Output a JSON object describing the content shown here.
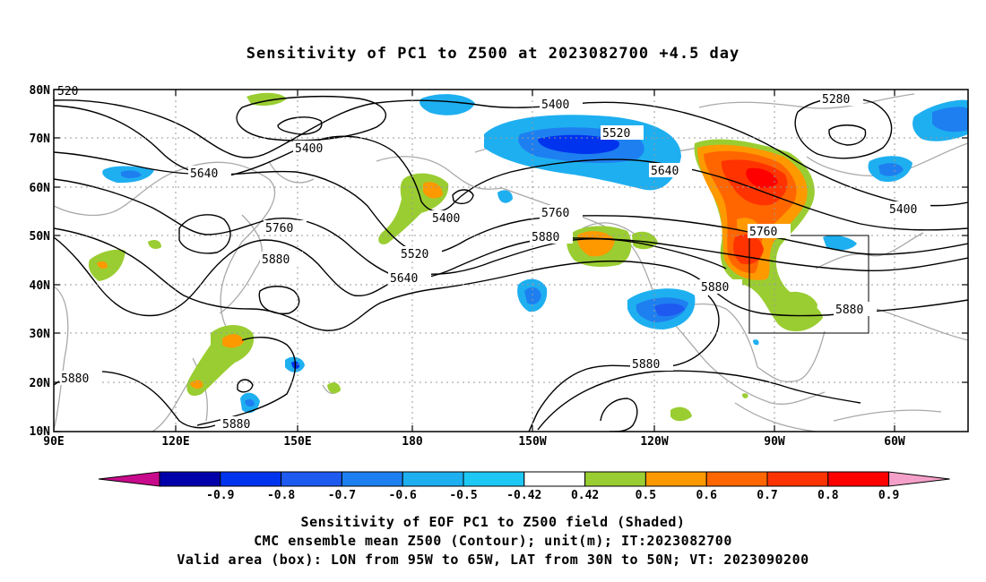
{
  "title": "Sensitivity of PC1 to Z500 at 2023082700 +4.5 day",
  "map": {
    "lat_labels": [
      "80N",
      "70N",
      "60N",
      "50N",
      "40N",
      "30N",
      "20N",
      "10N"
    ],
    "lon_labels": [
      "90E",
      "120E",
      "150E",
      "180",
      "150W",
      "120W",
      "90W",
      "60W"
    ],
    "contour_labels": [
      "5400",
      "5400",
      "5400",
      "5400",
      "5280",
      "5520",
      "5520",
      "5640",
      "5640",
      "5640",
      "5760",
      "5760",
      "5760",
      "5880",
      "5880",
      "5880",
      "5880",
      "5880",
      "5880",
      "5880"
    ],
    "partial_label": "520",
    "valid_box": {
      "lon_min": "95W",
      "lon_max": "65W",
      "lat_min": "30N",
      "lat_max": "50N"
    }
  },
  "colorbar": {
    "labels": [
      "-0.9",
      "-0.8",
      "-0.7",
      "-0.6",
      "-0.5",
      "-0.42",
      "0.42",
      "0.5",
      "0.6",
      "0.7",
      "0.8",
      "0.9"
    ],
    "colors": [
      "#0000aa",
      "#0033ee",
      "#1e5af0",
      "#1e7ff0",
      "#1eaff0",
      "#1ec8f5",
      "#ffffff",
      "#9acd32",
      "#ff9900",
      "#ff6600",
      "#ff3300",
      "#ff0000"
    ],
    "low_extend_color": "#c80a8c",
    "high_extend_color": "#f5a0c8"
  },
  "captions": {
    "line1": "Sensitivity of EOF PC1 to Z500 field (Shaded)",
    "line2": "CMC ensemble mean Z500 (Contour); unit(m); IT:2023082700",
    "line3": "Valid area (box): LON from 95W to 65W, LAT from 30N to 50N; VT: 2023090200"
  }
}
